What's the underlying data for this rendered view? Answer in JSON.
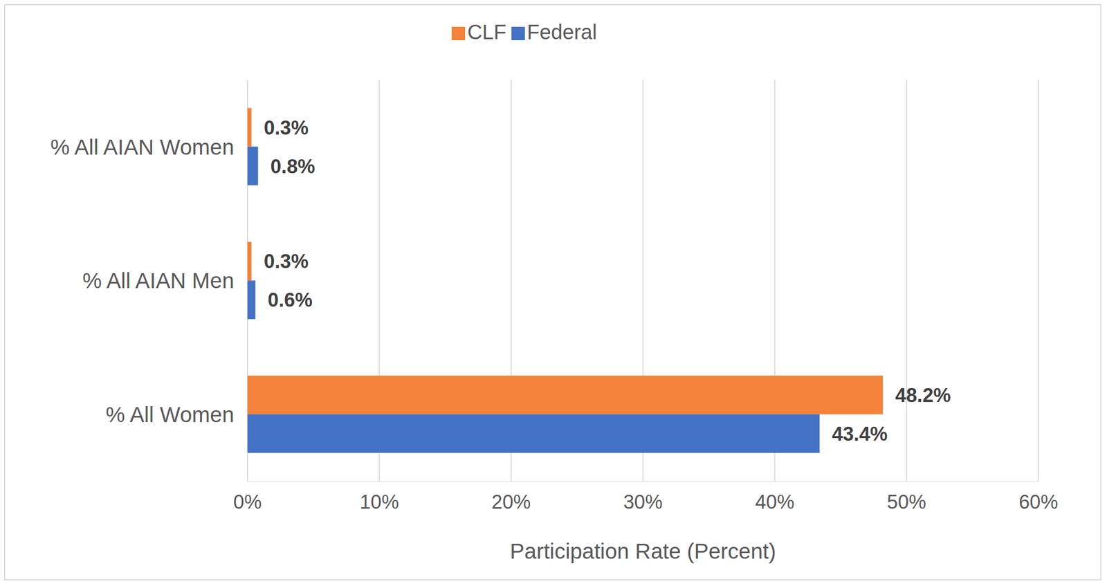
{
  "chart_data": {
    "type": "bar",
    "orientation": "horizontal",
    "categories": [
      "% All AIAN Women",
      "% All AIAN Men",
      "% All Women"
    ],
    "series": [
      {
        "name": "CLF",
        "color": "#f5823a",
        "values": [
          0.3,
          0.3,
          48.2
        ],
        "value_labels": [
          "0.3%",
          "0.3%",
          "48.2%"
        ]
      },
      {
        "name": "Federal",
        "color": "#4472c4",
        "values": [
          0.8,
          0.6,
          43.4
        ],
        "value_labels": [
          "0.8%",
          "0.6%",
          "43.4%"
        ]
      }
    ],
    "x_label": "Participation Rate (Percent)",
    "xlim": [
      0,
      60
    ],
    "xticks": [
      {
        "value": 0,
        "label": "0%"
      },
      {
        "value": 10,
        "label": "10%"
      },
      {
        "value": 20,
        "label": "20%"
      },
      {
        "value": 30,
        "label": "30%"
      },
      {
        "value": 40,
        "label": "40%"
      },
      {
        "value": 50,
        "label": "50%"
      },
      {
        "value": 60,
        "label": "60%"
      }
    ],
    "grid": true,
    "legend": "top",
    "data_labels": true
  }
}
